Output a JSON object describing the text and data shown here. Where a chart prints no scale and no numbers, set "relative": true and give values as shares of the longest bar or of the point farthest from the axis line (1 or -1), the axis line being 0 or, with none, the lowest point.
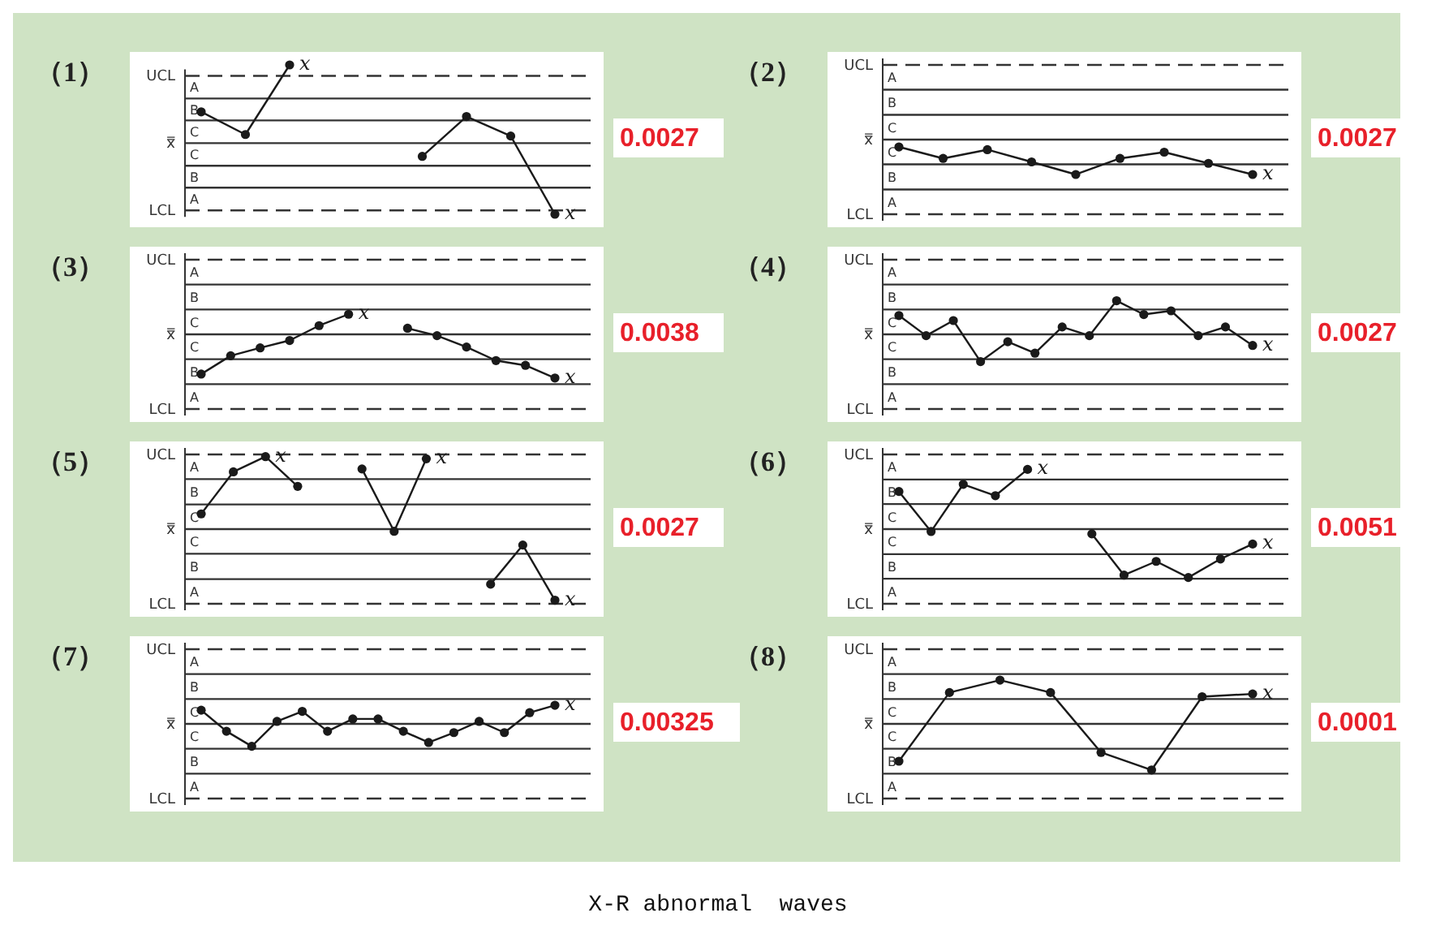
{
  "chart_data": [
    {
      "type": "line",
      "title": "（1）",
      "relative": true,
      "categories": [
        null,
        null,
        null,
        null,
        null,
        null,
        null,
        null,
        null
      ],
      "marker": "circle",
      "ref_lines": [
        {
          "axis": "y",
          "value": 0.86,
          "label": "UCL",
          "line_style": "dashed"
        },
        {
          "axis": "y",
          "value": 0.57
        },
        {
          "axis": "y",
          "value": 0.29
        },
        {
          "axis": "y",
          "value": 0,
          "label": "x̿"
        },
        {
          "axis": "y",
          "value": -0.29
        },
        {
          "axis": "y",
          "value": -0.57
        },
        {
          "axis": "y",
          "value": -0.86,
          "label": "LCL",
          "line_style": "dashed"
        }
      ],
      "series": [
        {
          "color": "#1a1a1a",
          "values": [
            0.4,
            0.11,
            1,
            null,
            null,
            null,
            null,
            null,
            null
          ]
        },
        {
          "color": "#1a1a1a",
          "values": [
            null,
            null,
            null,
            null,
            null,
            -0.17,
            0.34,
            0.09,
            -0.91
          ]
        }
      ],
      "annotations": [
        "A",
        "B",
        "C",
        "C",
        "B",
        "A",
        "0.0027",
        "x",
        {
          "text": "x",
          "y": -0.91
        }
      ]
    },
    {
      "type": "line",
      "title": "（2）",
      "relative": true,
      "categories": [
        null,
        null,
        null,
        null,
        null,
        null,
        null,
        null,
        null
      ],
      "marker": "circle",
      "ref_lines": [
        {
          "axis": "y",
          "value": 2.14,
          "label": "UCL",
          "line_style": "dashed"
        },
        {
          "axis": "y",
          "value": 1.43
        },
        {
          "axis": "y",
          "value": 0.71
        },
        {
          "axis": "y",
          "value": 0,
          "label": "x̿"
        },
        {
          "axis": "y",
          "value": -0.71
        },
        {
          "axis": "y",
          "value": -1.43
        },
        {
          "axis": "y",
          "value": -2.14,
          "label": "LCL",
          "line_style": "dashed"
        }
      ],
      "series": [
        {
          "color": "#1a1a1a",
          "values": [
            -0.21,
            -0.54,
            -0.29,
            -0.64,
            -1,
            -0.54,
            -0.36,
            -0.68,
            -1
          ]
        }
      ],
      "annotations": [
        "A",
        "B",
        "C",
        "C",
        "B",
        "A",
        "0.0027",
        "x"
      ]
    },
    {
      "type": "line",
      "title": "（3）",
      "relative": true,
      "categories": [
        null,
        null,
        null,
        null,
        null,
        null,
        null,
        null,
        null,
        null,
        null,
        null,
        null
      ],
      "marker": "circle",
      "ref_lines": [
        {
          "axis": "y",
          "value": 1.71,
          "label": "UCL",
          "line_style": "dashed"
        },
        {
          "axis": "y",
          "value": 1.14
        },
        {
          "axis": "y",
          "value": 0.57
        },
        {
          "axis": "y",
          "value": 0,
          "label": "x̿"
        },
        {
          "axis": "y",
          "value": -0.57
        },
        {
          "axis": "y",
          "value": -1.14
        },
        {
          "axis": "y",
          "value": -1.71,
          "label": "LCL",
          "line_style": "dashed"
        }
      ],
      "series": [
        {
          "color": "#1a1a1a",
          "values": [
            -0.91,
            -0.49,
            -0.31,
            -0.14,
            0.2,
            0.46,
            null,
            null,
            null,
            null,
            null,
            null,
            null
          ]
        },
        {
          "color": "#1a1a1a",
          "values": [
            null,
            null,
            null,
            null,
            null,
            null,
            null,
            0.14,
            -0.03,
            -0.29,
            -0.6,
            -0.71,
            -1
          ]
        }
      ],
      "annotations": [
        "A",
        "B",
        "C",
        "C",
        "B",
        "A",
        "0.0038",
        {
          "text": "x",
          "y": 0.46
        },
        {
          "text": "x",
          "y": -1
        }
      ]
    },
    {
      "type": "line",
      "title": "（4）",
      "relative": true,
      "categories": [
        null,
        null,
        null,
        null,
        null,
        null,
        null,
        null,
        null,
        null,
        null,
        null,
        null,
        null
      ],
      "marker": "circle",
      "ref_lines": [
        {
          "axis": "y",
          "value": 2.22,
          "label": "UCL",
          "line_style": "dashed"
        },
        {
          "axis": "y",
          "value": 1.48
        },
        {
          "axis": "y",
          "value": 0.74
        },
        {
          "axis": "y",
          "value": 0,
          "label": "x̿"
        },
        {
          "axis": "y",
          "value": -0.74
        },
        {
          "axis": "y",
          "value": -1.48
        },
        {
          "axis": "y",
          "value": -2.22,
          "label": "LCL",
          "line_style": "dashed"
        }
      ],
      "series": [
        {
          "color": "#1a1a1a",
          "values": [
            0.56,
            -0.04,
            0.41,
            -0.81,
            -0.22,
            -0.56,
            0.22,
            -0.04,
            1,
            0.59,
            0.7,
            -0.04,
            0.22,
            -0.33
          ]
        }
      ],
      "annotations": [
        "A",
        "B",
        "C",
        "C",
        "B",
        "A",
        "0.0027",
        "x"
      ]
    },
    {
      "type": "line",
      "title": "（5）",
      "relative": true,
      "categories": [
        null,
        null,
        null,
        null,
        null,
        null,
        null,
        null,
        null,
        null,
        null,
        null
      ],
      "marker": "circle",
      "ref_lines": [
        {
          "axis": "y",
          "value": 1.03,
          "label": "UCL",
          "line_style": "dashed"
        },
        {
          "axis": "y",
          "value": 0.69
        },
        {
          "axis": "y",
          "value": 0.34
        },
        {
          "axis": "y",
          "value": 0,
          "label": "x̿"
        },
        {
          "axis": "y",
          "value": -0.34
        },
        {
          "axis": "y",
          "value": -0.69
        },
        {
          "axis": "y",
          "value": -1.03,
          "label": "LCL",
          "line_style": "dashed"
        }
      ],
      "series": [
        {
          "color": "#1a1a1a",
          "values": [
            0.21,
            0.79,
            1,
            0.59,
            null,
            null,
            null,
            null,
            null,
            null,
            null,
            null
          ]
        },
        {
          "color": "#1a1a1a",
          "values": [
            null,
            null,
            null,
            null,
            null,
            0.83,
            -0.03,
            0.97,
            null,
            null,
            null,
            null
          ]
        },
        {
          "color": "#1a1a1a",
          "values": [
            null,
            null,
            null,
            null,
            null,
            null,
            null,
            null,
            null,
            -0.76,
            -0.22,
            -0.98
          ]
        }
      ],
      "annotations": [
        "A",
        "B",
        "C",
        "C",
        "B",
        "A",
        "0.0027",
        {
          "text": "x",
          "y": 1
        },
        {
          "text": "x",
          "y": 0.97
        },
        {
          "text": "x",
          "y": -0.98
        }
      ]
    },
    {
      "type": "line",
      "title": "（6）",
      "relative": true,
      "categories": [
        null,
        null,
        null,
        null,
        null,
        null,
        null,
        null,
        null,
        null,
        null,
        null
      ],
      "marker": "circle",
      "ref_lines": [
        {
          "axis": "y",
          "value": 1.25,
          "label": "UCL",
          "line_style": "dashed"
        },
        {
          "axis": "y",
          "value": 0.83
        },
        {
          "axis": "y",
          "value": 0.42
        },
        {
          "axis": "y",
          "value": 0,
          "label": "x̿"
        },
        {
          "axis": "y",
          "value": -0.42
        },
        {
          "axis": "y",
          "value": -0.83
        },
        {
          "axis": "y",
          "value": -1.25,
          "label": "LCL",
          "line_style": "dashed"
        }
      ],
      "series": [
        {
          "color": "#1a1a1a",
          "values": [
            0.63,
            -0.04,
            0.75,
            0.56,
            1,
            null,
            null,
            null,
            null,
            null,
            null,
            null
          ]
        },
        {
          "color": "#1a1a1a",
          "values": [
            null,
            null,
            null,
            null,
            null,
            null,
            -0.08,
            -0.77,
            -0.54,
            -0.81,
            -0.5,
            -0.25
          ]
        }
      ],
      "annotations": [
        "A",
        "B",
        "C",
        "C",
        "B",
        "A",
        "0.0051",
        "x",
        "x"
      ]
    },
    {
      "type": "line",
      "title": "（7）",
      "relative": true,
      "categories": [
        null,
        null,
        null,
        null,
        null,
        null,
        null,
        null,
        null,
        null,
        null,
        null,
        null,
        null,
        null
      ],
      "marker": "circle",
      "ref_lines": [
        {
          "axis": "y",
          "value": 3.33,
          "label": "UCL",
          "line_style": "dashed"
        },
        {
          "axis": "y",
          "value": 2.22
        },
        {
          "axis": "y",
          "value": 1.11
        },
        {
          "axis": "y",
          "value": 0,
          "label": "x̿"
        },
        {
          "axis": "y",
          "value": -1.11
        },
        {
          "axis": "y",
          "value": -2.22
        },
        {
          "axis": "y",
          "value": -3.33,
          "label": "LCL",
          "line_style": "dashed"
        }
      ],
      "series": [
        {
          "color": "#1a1a1a",
          "values": [
            0.61,
            -0.33,
            -1,
            0.11,
            0.56,
            -0.33,
            0.22,
            0.22,
            -0.33,
            -0.83,
            -0.39,
            0.11,
            -0.39,
            0.5,
            0.83
          ]
        }
      ],
      "annotations": [
        "A",
        "B",
        "C",
        "C",
        "B",
        "A",
        "0.00325",
        {
          "text": "x",
          "y": 0.83
        }
      ]
    },
    {
      "type": "line",
      "title": "（8）",
      "relative": true,
      "categories": [
        null,
        null,
        null,
        null,
        null,
        null,
        null,
        null
      ],
      "marker": "circle",
      "ref_lines": [
        {
          "axis": "y",
          "value": 1.62,
          "label": "UCL",
          "line_style": "dashed"
        },
        {
          "axis": "y",
          "value": 1.08
        },
        {
          "axis": "y",
          "value": 0.54
        },
        {
          "axis": "y",
          "value": 0,
          "label": "x̿"
        },
        {
          "axis": "y",
          "value": -0.54
        },
        {
          "axis": "y",
          "value": -1.08
        },
        {
          "axis": "y",
          "value": -1.62,
          "label": "LCL",
          "line_style": "dashed"
        }
      ],
      "series": [
        {
          "color": "#1a1a1a",
          "values": [
            -0.81,
            0.68,
            0.95,
            0.68,
            -0.62,
            -1,
            0.59,
            0.65
          ]
        }
      ],
      "annotations": [
        "A",
        "B",
        "C",
        "C",
        "B",
        "A",
        "0.0001",
        {
          "text": "x",
          "y": 0.65
        }
      ]
    },
    {
      "type": "other",
      "title": "X-R abnormal  waves"
    }
  ]
}
